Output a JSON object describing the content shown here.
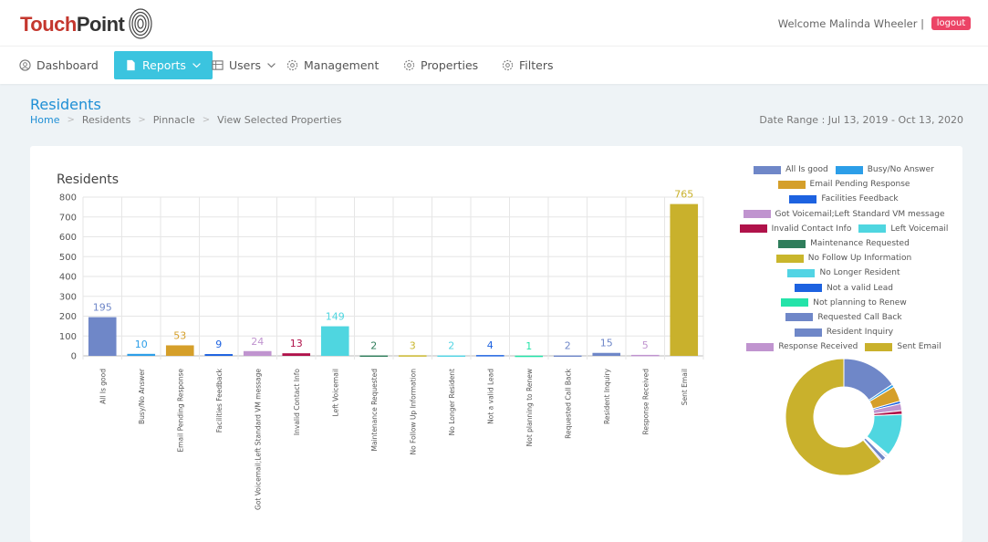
{
  "brand": {
    "part1": "Touch",
    "part2": "Point"
  },
  "header": {
    "welcome": "Welcome Malinda Wheeler |",
    "logout": "logout"
  },
  "nav": {
    "dashboard": "Dashboard",
    "reports": "Reports",
    "users": "Users",
    "management": "Management",
    "properties": "Properties",
    "filters": "Filters"
  },
  "page": {
    "title": "Residents",
    "breadcrumb": [
      "Home",
      "Residents",
      "Pinnacle",
      "View Selected Properties"
    ],
    "date_range": "Date Range : Jul 13, 2019 - Oct 13, 2020"
  },
  "chart_data": {
    "type": "bar",
    "title": "Residents",
    "ylim": [
      0,
      800
    ],
    "yticks": [
      "800",
      "700",
      "600",
      "500",
      "400",
      "300",
      "200",
      "100",
      "0"
    ],
    "categories": [
      "All Is good",
      "Busy/No Answer",
      "Email Pending Response",
      "Facilities Feedback",
      "Got Voicemail;Left Standard VM message",
      "Invalid Contact Info",
      "Left Voicemail",
      "Maintenance Requested",
      "No Follow Up Information",
      "No Longer Resident",
      "Not a valid Lead",
      "Not planning to Renew",
      "Requested Call Back",
      "Resident Inquiry",
      "Response Received",
      "Sent Email"
    ],
    "values": [
      195,
      10,
      53,
      9,
      24,
      13,
      149,
      2,
      3,
      2,
      4,
      1,
      2,
      15,
      5,
      765
    ],
    "value_labels": [
      "195",
      "10",
      "53",
      "9",
      "24",
      "13",
      "149",
      "2",
      "3",
      "2",
      "4",
      "1",
      "2",
      "15",
      "5",
      "765"
    ],
    "colors": [
      "#6f87c8",
      "#2c9ee8",
      "#d59f2a",
      "#1d62e0",
      "#c094cf",
      "#b0124a",
      "#4fd6e0",
      "#2f7d5b",
      "#c9b62c",
      "#52d4e4",
      "#1d62e0",
      "#24e3a9",
      "#6f87c8",
      "#6f87c8",
      "#c094cf",
      "#c9b12c"
    ],
    "grid": true,
    "legend_position": "right",
    "donut": true
  },
  "legend_rows": [
    [
      0,
      1
    ],
    [
      2
    ],
    [
      3
    ],
    [
      4
    ],
    [
      5,
      6
    ],
    [
      7
    ],
    [
      8
    ],
    [
      9
    ],
    [
      10
    ],
    [
      11
    ],
    [
      12
    ],
    [
      13
    ],
    [
      14,
      15
    ]
  ]
}
